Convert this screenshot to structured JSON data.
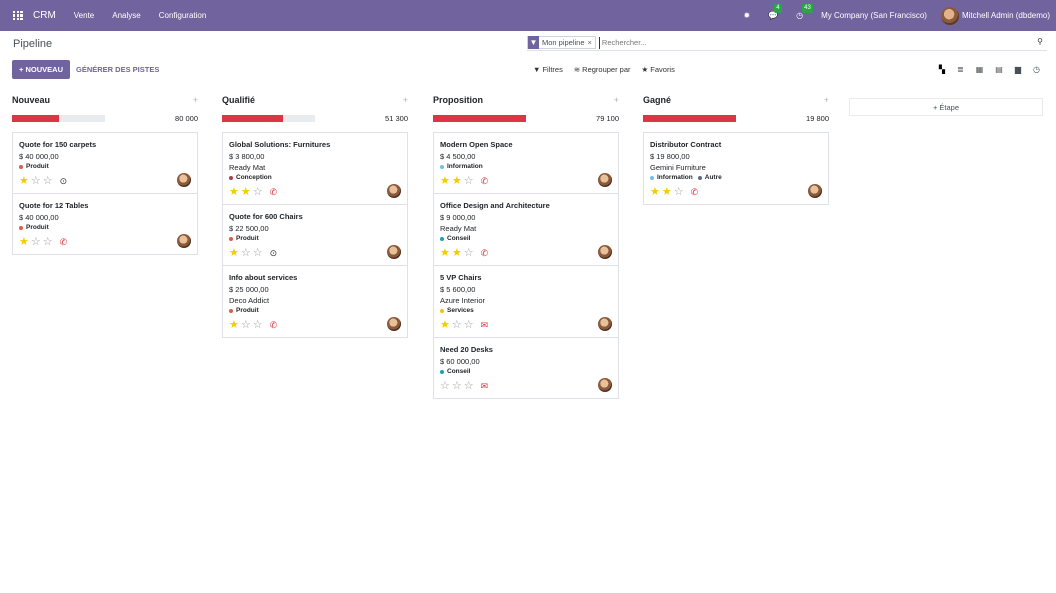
{
  "navbar": {
    "brand": "CRM",
    "menu": [
      "Vente",
      "Analyse",
      "Configuration"
    ],
    "messages_count": "4",
    "activities_count": "43",
    "company": "My Company (San Francisco)",
    "user": "Mitchell Admin (dbdemo)"
  },
  "control": {
    "title": "Pipeline",
    "facet": "Mon pipeline",
    "facet_close": "×",
    "search_placeholder": "Rechercher...",
    "new_label": "+ NOUVEAU",
    "generate_label": "GÉNÉRER DES PISTES",
    "filters_label": "Filtres",
    "groupby_label": "Regrouper par",
    "favorites_label": "Favoris"
  },
  "colors": {
    "accent": "#71639e",
    "danger": "#dc3545",
    "star": "#f3cc00"
  },
  "columns": [
    {
      "name": "Nouveau",
      "total": "80 000",
      "progress": 0.5,
      "cards": [
        {
          "title": "Quote for 150 carpets",
          "amount": "$ 40 000,00",
          "partner": "",
          "tags": [
            {
              "label": "Produit",
              "color": "#e05b4a"
            }
          ],
          "stars": 1,
          "activity": "clock"
        },
        {
          "title": "Quote for 12 Tables",
          "amount": "$ 40 000,00",
          "partner": "",
          "tags": [
            {
              "label": "Produit",
              "color": "#e05b4a"
            }
          ],
          "stars": 1,
          "activity": "phone"
        }
      ]
    },
    {
      "name": "Qualifié",
      "total": "51 300",
      "progress": 0.66,
      "cards": [
        {
          "title": "Global Solutions: Furnitures",
          "amount": "$ 3 800,00",
          "partner": "Ready Mat",
          "tags": [
            {
              "label": "Conception",
              "color": "#a0434f"
            }
          ],
          "stars": 2,
          "activity": "phone"
        },
        {
          "title": "Quote for 600 Chairs",
          "amount": "$ 22 500,00",
          "partner": "",
          "tags": [
            {
              "label": "Produit",
              "color": "#e05b4a"
            }
          ],
          "stars": 1,
          "activity": "clock"
        },
        {
          "title": "Info about services",
          "amount": "$ 25 000,00",
          "partner": "Deco Addict",
          "tags": [
            {
              "label": "Produit",
              "color": "#e05b4a"
            }
          ],
          "stars": 1,
          "activity": "phone"
        }
      ]
    },
    {
      "name": "Proposition",
      "total": "79 100",
      "progress": 1.0,
      "cards": [
        {
          "title": "Modern Open Space",
          "amount": "$ 4 500,00",
          "partner": "",
          "tags": [
            {
              "label": "Information",
              "color": "#6cc1ed"
            }
          ],
          "stars": 2,
          "activity": "phone"
        },
        {
          "title": "Office Design and Architecture",
          "amount": "$ 9 000,00",
          "partner": "Ready Mat",
          "tags": [
            {
              "label": "Conseil",
              "color": "#17a2b8"
            }
          ],
          "stars": 2,
          "activity": "phone"
        },
        {
          "title": "5 VP Chairs",
          "amount": "$ 5 600,00",
          "partner": "Azure Interior",
          "tags": [
            {
              "label": "Services",
              "color": "#f4c20d"
            }
          ],
          "stars": 1,
          "activity": "mail"
        },
        {
          "title": "Need 20 Desks",
          "amount": "$ 60 000,00",
          "partner": "",
          "tags": [
            {
              "label": "Conseil",
              "color": "#17a2b8"
            }
          ],
          "stars": 0,
          "activity": "mail"
        }
      ]
    },
    {
      "name": "Gagné",
      "total": "19 800",
      "progress": 1.0,
      "cards": [
        {
          "title": "Distributor Contract",
          "amount": "$ 19 800,00",
          "partner": "Gemini Furniture",
          "tags": [
            {
              "label": "Information",
              "color": "#6cc1ed"
            },
            {
              "label": "Autre",
              "color": "#5a6a8a"
            }
          ],
          "stars": 2,
          "activity": "phone"
        }
      ]
    }
  ],
  "add_stage_label": "+ Étape"
}
